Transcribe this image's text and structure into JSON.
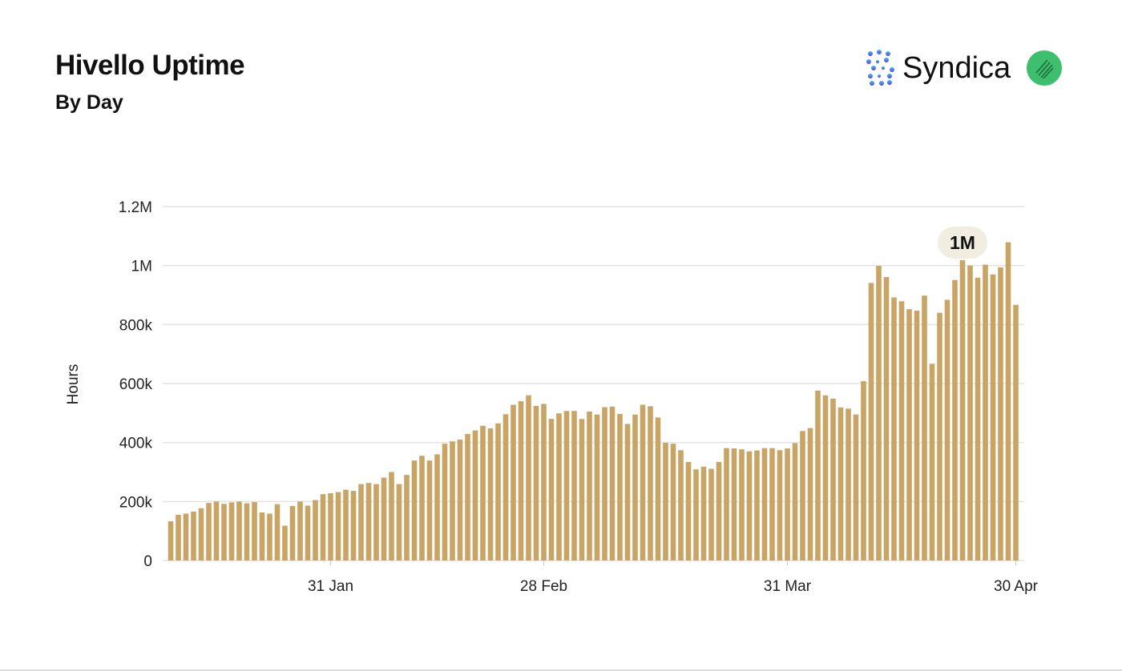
{
  "header": {
    "title": "Hivello Uptime",
    "subtitle": "By Day"
  },
  "brand": {
    "name": "Syndica",
    "logo_icon": "syndica-dots-logo",
    "badge_icon": "hivello-green-badge",
    "badge_color": "#3dbf6e"
  },
  "chart_data": {
    "type": "bar",
    "title": "Hivello Uptime",
    "subtitle": "By Day",
    "ylabel": "Hours",
    "xlabel": "",
    "ylim": [
      0,
      1200000
    ],
    "y_ticks": [
      {
        "value": 0,
        "label": "0"
      },
      {
        "value": 200000,
        "label": "200k"
      },
      {
        "value": 400000,
        "label": "400k"
      },
      {
        "value": 600000,
        "label": "600k"
      },
      {
        "value": 800000,
        "label": "800k"
      },
      {
        "value": 1000000,
        "label": "1M"
      },
      {
        "value": 1200000,
        "label": "1.2M"
      }
    ],
    "x_ticks": [
      "31 Jan",
      "28 Feb",
      "31 Mar",
      "30 Apr"
    ],
    "grid": true,
    "bar_color": "#c8a465",
    "annotation": {
      "label": "1M",
      "category": "23 Apr"
    },
    "categories": [
      "10 Jan",
      "11 Jan",
      "12 Jan",
      "13 Jan",
      "14 Jan",
      "15 Jan",
      "16 Jan",
      "17 Jan",
      "18 Jan",
      "19 Jan",
      "20 Jan",
      "21 Jan",
      "22 Jan",
      "23 Jan",
      "24 Jan",
      "25 Jan",
      "26 Jan",
      "27 Jan",
      "28 Jan",
      "29 Jan",
      "30 Jan",
      "31 Jan",
      "1 Feb",
      "2 Feb",
      "3 Feb",
      "4 Feb",
      "5 Feb",
      "6 Feb",
      "7 Feb",
      "8 Feb",
      "9 Feb",
      "10 Feb",
      "11 Feb",
      "12 Feb",
      "13 Feb",
      "14 Feb",
      "15 Feb",
      "16 Feb",
      "17 Feb",
      "18 Feb",
      "19 Feb",
      "20 Feb",
      "21 Feb",
      "22 Feb",
      "23 Feb",
      "24 Feb",
      "25 Feb",
      "26 Feb",
      "27 Feb",
      "28 Feb",
      "29 Feb",
      "1 Mar",
      "2 Mar",
      "3 Mar",
      "4 Mar",
      "5 Mar",
      "6 Mar",
      "7 Mar",
      "8 Mar",
      "9 Mar",
      "10 Mar",
      "11 Mar",
      "12 Mar",
      "13 Mar",
      "14 Mar",
      "15 Mar",
      "16 Mar",
      "17 Mar",
      "18 Mar",
      "19 Mar",
      "20 Mar",
      "21 Mar",
      "22 Mar",
      "23 Mar",
      "24 Mar",
      "25 Mar",
      "26 Mar",
      "27 Mar",
      "28 Mar",
      "29 Mar",
      "30 Mar",
      "31 Mar",
      "1 Apr",
      "2 Apr",
      "3 Apr",
      "4 Apr",
      "5 Apr",
      "6 Apr",
      "7 Apr",
      "8 Apr",
      "9 Apr",
      "10 Apr",
      "11 Apr",
      "12 Apr",
      "13 Apr",
      "14 Apr",
      "15 Apr",
      "16 Apr",
      "17 Apr",
      "18 Apr",
      "19 Apr",
      "20 Apr",
      "21 Apr",
      "22 Apr",
      "23 Apr",
      "24 Apr",
      "25 Apr",
      "26 Apr",
      "27 Apr",
      "28 Apr",
      "29 Apr",
      "30 Apr"
    ],
    "values": [
      133000,
      155000,
      159000,
      166000,
      177000,
      195000,
      200000,
      192000,
      197000,
      200000,
      194000,
      198000,
      163000,
      159000,
      191000,
      118000,
      185000,
      200000,
      186000,
      205000,
      225000,
      228000,
      232000,
      240000,
      236000,
      259000,
      263000,
      259000,
      281000,
      300000,
      259000,
      290000,
      339000,
      355000,
      339000,
      360000,
      396000,
      404000,
      410000,
      429000,
      441000,
      457000,
      448000,
      465000,
      496000,
      528000,
      540000,
      560000,
      524000,
      531000,
      480000,
      499000,
      507000,
      507000,
      480000,
      505000,
      495000,
      520000,
      522000,
      497000,
      463000,
      495000,
      528000,
      523000,
      485000,
      399000,
      396000,
      374000,
      334000,
      309000,
      318000,
      311000,
      334000,
      381000,
      380000,
      377000,
      370000,
      373000,
      381000,
      381000,
      374000,
      380000,
      398000,
      439000,
      449000,
      576000,
      560000,
      549000,
      519000,
      515000,
      495000,
      608000,
      941000,
      999000,
      961000,
      892000,
      879000,
      852000,
      847000,
      898000,
      667000,
      840000,
      884000,
      951000,
      1018000,
      1000000,
      959000,
      1003000,
      970000,
      994000,
      1079000,
      867000
    ]
  }
}
